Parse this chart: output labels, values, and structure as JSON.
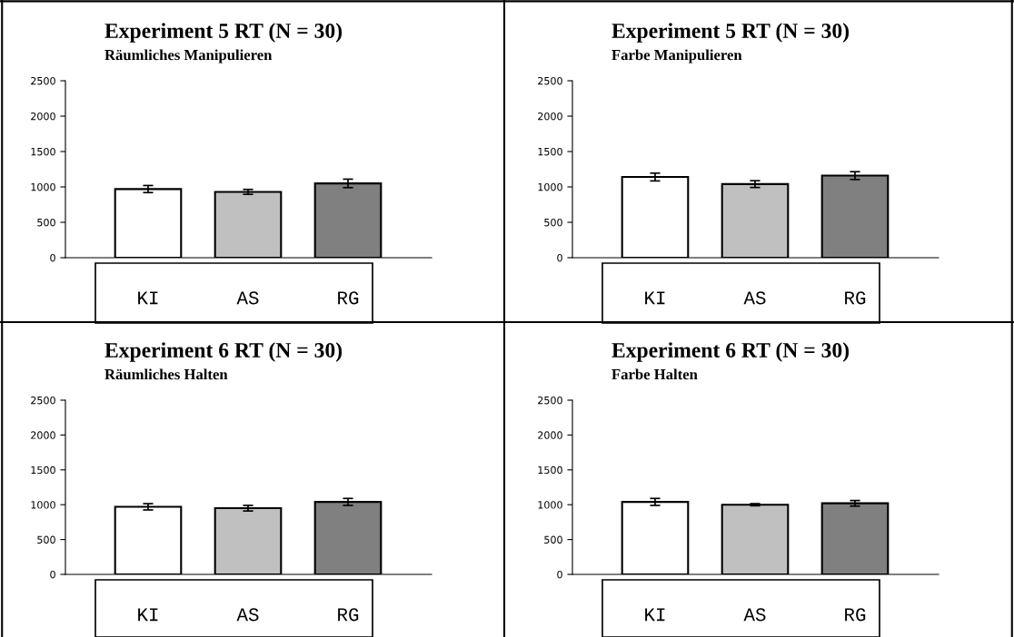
{
  "chart_data": [
    {
      "type": "bar",
      "title": "Experiment 5 RT (N = 30)",
      "subtitle": "Räumliches Manipulieren",
      "categories": [
        "KI",
        "AS",
        "RG"
      ],
      "values": [
        970,
        930,
        1050
      ],
      "colors": [
        "#ffffff",
        "#c0c0c0",
        "#808080"
      ],
      "errors": [
        50,
        35,
        60
      ],
      "ylim": [
        0,
        2500
      ],
      "yticks": [
        0,
        500,
        1000,
        1500,
        2000,
        2500
      ]
    },
    {
      "type": "bar",
      "title": "Experiment 5 RT (N = 30)",
      "subtitle": "Farbe Manipulieren",
      "categories": [
        "KI",
        "AS",
        "RG"
      ],
      "values": [
        1140,
        1040,
        1160
      ],
      "colors": [
        "#ffffff",
        "#c0c0c0",
        "#808080"
      ],
      "errors": [
        55,
        48,
        55
      ],
      "ylim": [
        0,
        2500
      ],
      "yticks": [
        0,
        500,
        1000,
        1500,
        2000,
        2500
      ]
    },
    {
      "type": "bar",
      "title": "Experiment 6 RT (N = 30)",
      "subtitle": "Räumliches Halten",
      "categories": [
        "KI",
        "AS",
        "RG"
      ],
      "values": [
        970,
        950,
        1040
      ],
      "colors": [
        "#ffffff",
        "#c0c0c0",
        "#808080"
      ],
      "errors": [
        45,
        40,
        50
      ],
      "ylim": [
        0,
        2500
      ],
      "yticks": [
        0,
        500,
        1000,
        1500,
        2000,
        2500
      ]
    },
    {
      "type": "bar",
      "title": "Experiment 6 RT (N = 30)",
      "subtitle": "Farbe Halten",
      "categories": [
        "KI",
        "AS",
        "RG"
      ],
      "values": [
        1040,
        1000,
        1020
      ],
      "colors": [
        "#ffffff",
        "#c0c0c0",
        "#808080"
      ],
      "errors": [
        50,
        15,
        40
      ],
      "ylim": [
        0,
        2500
      ],
      "yticks": [
        0,
        500,
        1000,
        1500,
        2000,
        2500
      ]
    }
  ]
}
